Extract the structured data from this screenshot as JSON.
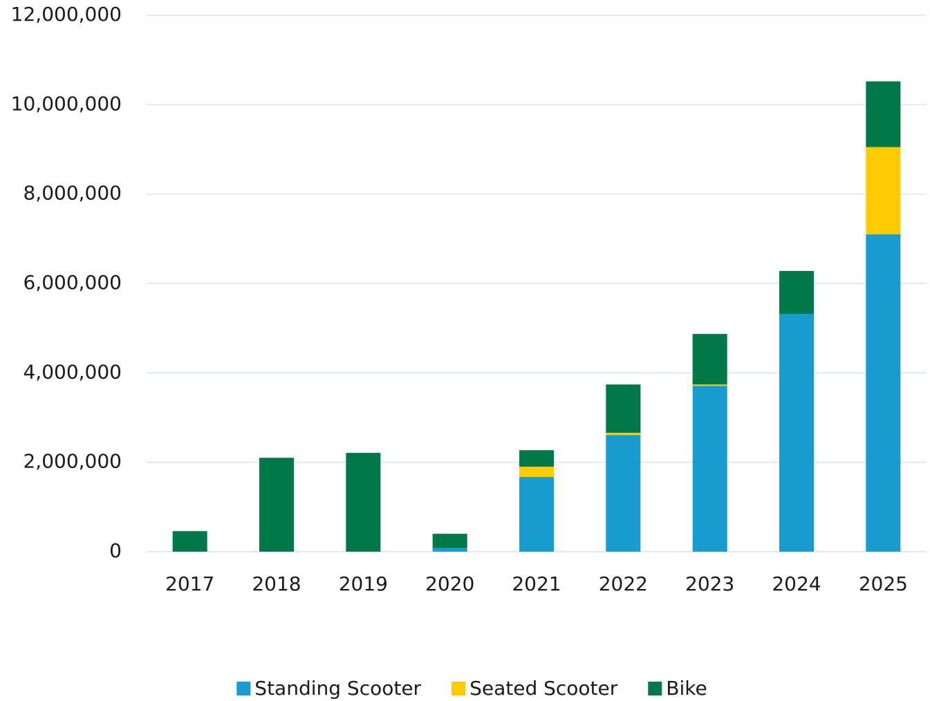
{
  "chart_data": {
    "type": "stacked_bar",
    "categories": [
      "2017",
      "2018",
      "2019",
      "2020",
      "2021",
      "2022",
      "2023",
      "2024",
      "2025"
    ],
    "series": [
      {
        "name": "Standing Scooter",
        "color": "#1a9bcf",
        "values": [
          0,
          0,
          0,
          80000,
          1670000,
          2610000,
          3710000,
          5320000,
          7100000
        ]
      },
      {
        "name": "Seated Scooter",
        "color": "#fecb00",
        "values": [
          0,
          0,
          0,
          0,
          230000,
          50000,
          30000,
          0,
          1950000
        ]
      },
      {
        "name": "Bike",
        "color": "#00784a",
        "values": [
          460000,
          2100000,
          2210000,
          320000,
          370000,
          1080000,
          1130000,
          960000,
          1470000
        ]
      }
    ],
    "ylim": [
      0,
      12000000
    ],
    "yticks": [
      0,
      {
        "value": 2000000,
        "label": "2,000,000"
      },
      {
        "value": 4000000,
        "label": "4,000,000"
      },
      {
        "value": 6000000,
        "label": "6,000,000"
      },
      {
        "value": 8000000,
        "label": "8,000,000"
      },
      {
        "value": 10000000,
        "label": "10,000,000"
      },
      {
        "value": 12000000,
        "label": "12,000,000"
      }
    ],
    "grid": true,
    "legend": "bottom"
  }
}
